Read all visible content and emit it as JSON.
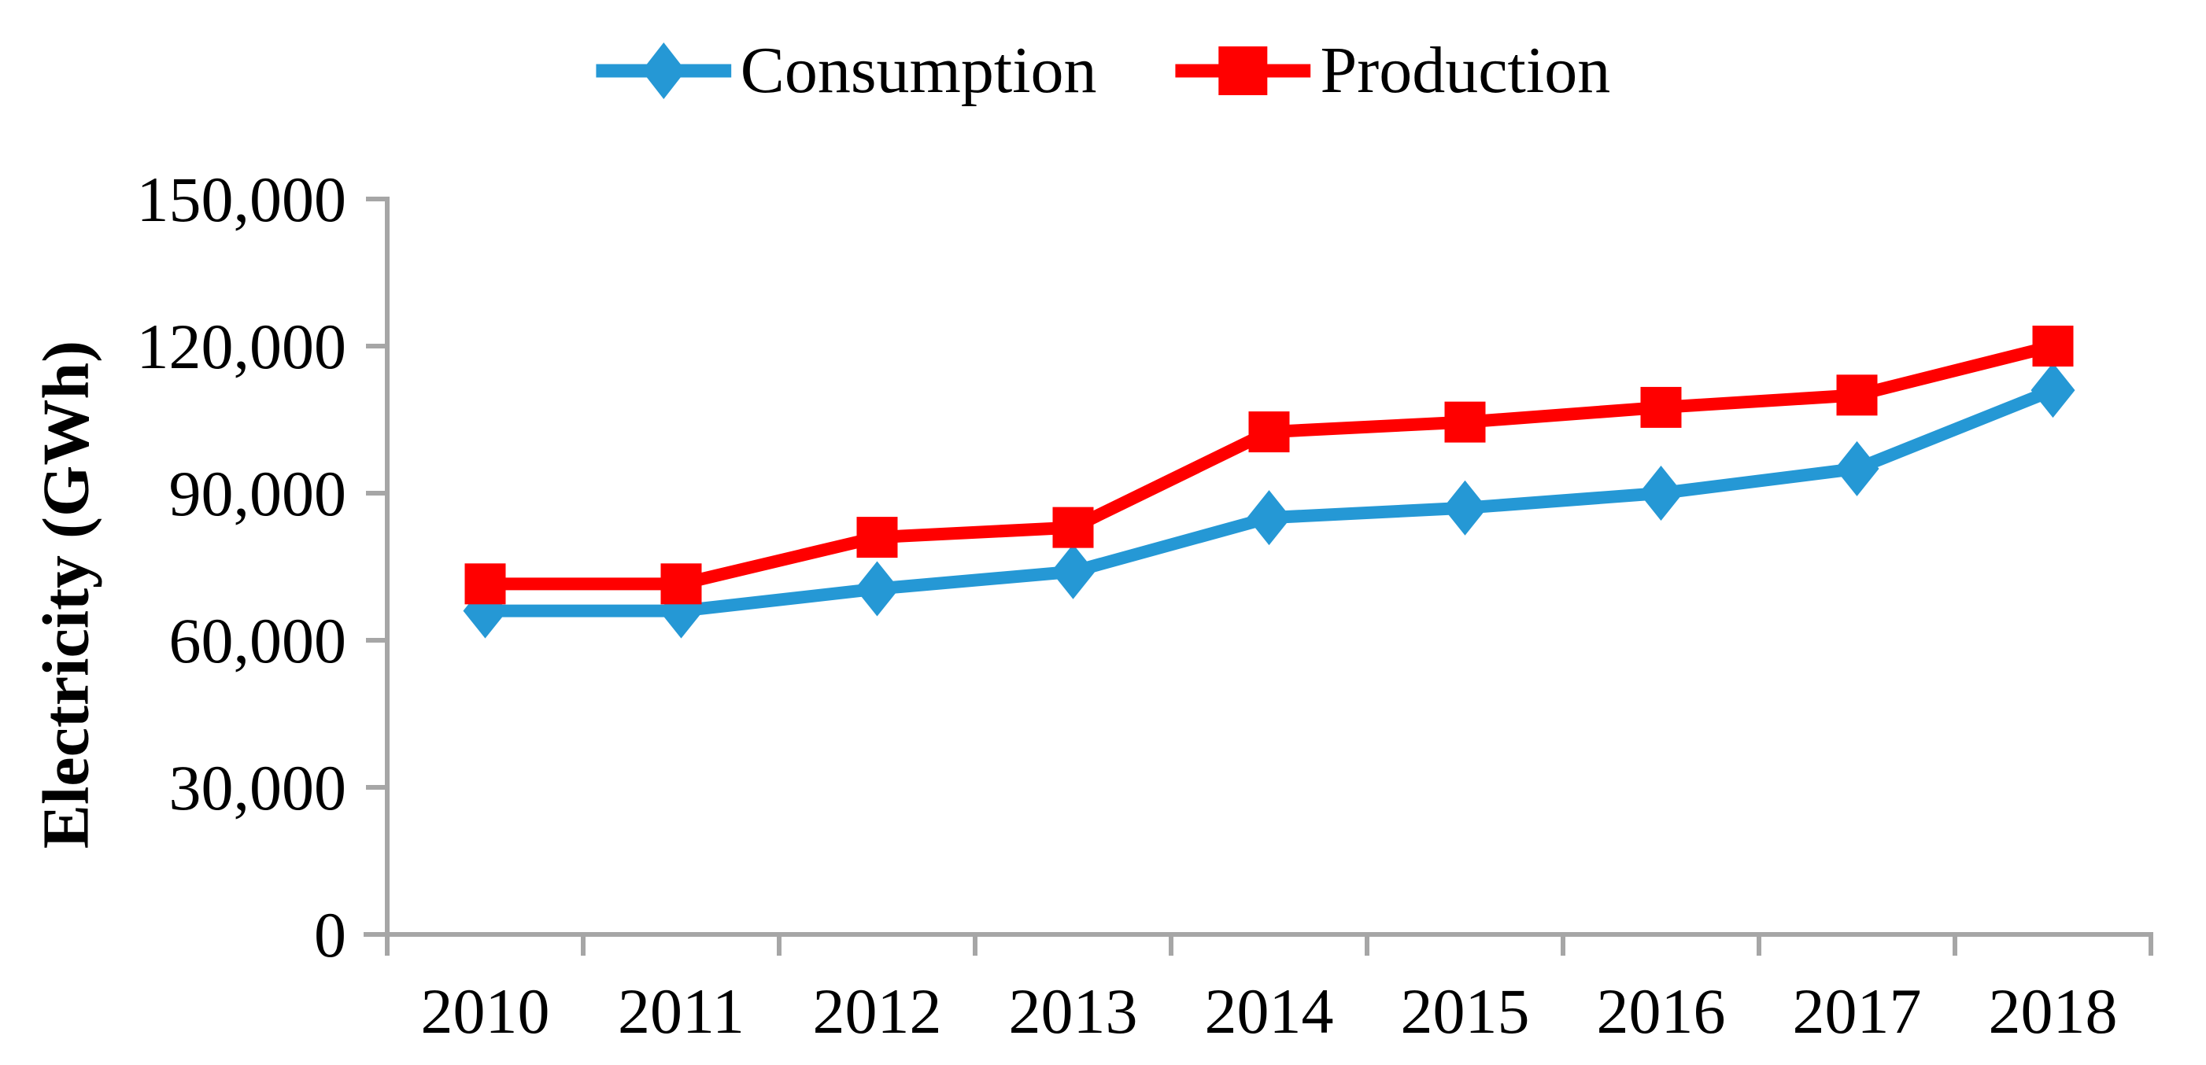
{
  "chart_data": {
    "type": "line",
    "title": "",
    "categories": [
      "2010",
      "2011",
      "2012",
      "2013",
      "2014",
      "2015",
      "2016",
      "2017",
      "2018"
    ],
    "series": [
      {
        "name": "Consumption",
        "color": "#2598D5",
        "marker": "diamond",
        "values": [
          66000,
          66000,
          70500,
          74000,
          85000,
          87000,
          90000,
          95000,
          111000
        ]
      },
      {
        "name": "Production",
        "color": "#FF0000",
        "marker": "square",
        "values": [
          71500,
          71500,
          81000,
          83000,
          102500,
          104500,
          107500,
          110000,
          120000
        ]
      }
    ],
    "xlabel": "",
    "ylabel": "Electricity (GWh)",
    "ylim": [
      0,
      150000
    ],
    "yticks": [
      0,
      30000,
      60000,
      90000,
      120000,
      150000
    ],
    "ytick_labels": [
      "0",
      "30,000",
      "60,000",
      "90,000",
      "120,000",
      "150,000"
    ],
    "grid": false,
    "legend_position": "top-center",
    "axis_color": "#A6A6A6",
    "text_color": "#000000",
    "background": "#FFFFFF"
  }
}
